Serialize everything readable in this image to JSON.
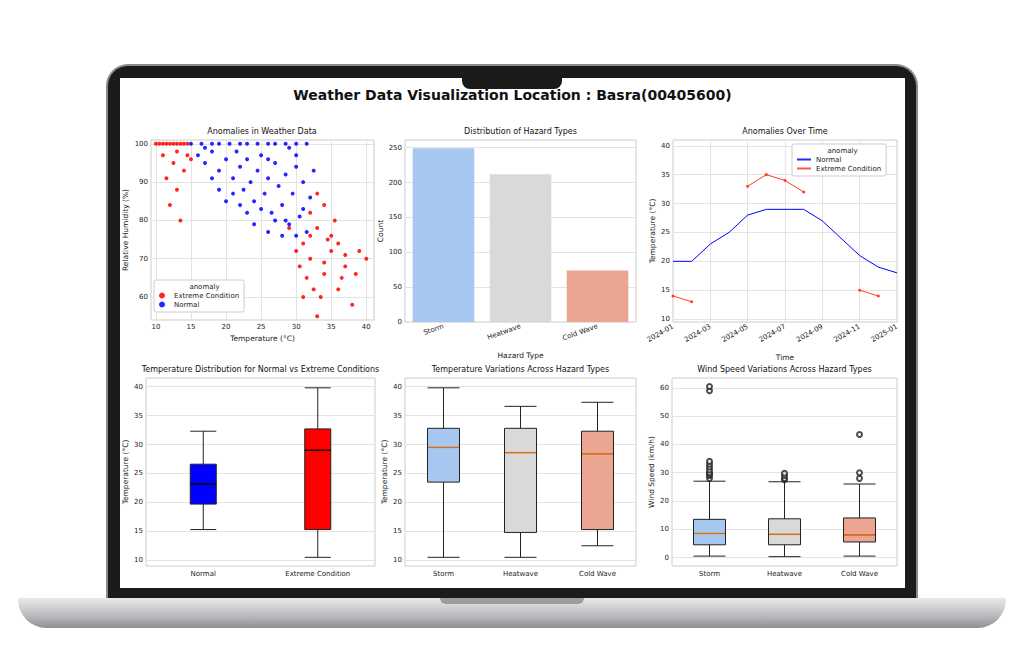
{
  "title": "Weather Data Visualization Location : Basra(00405600)",
  "chart_data": [
    {
      "type": "scatter",
      "title": "Anomalies in Weather Data",
      "x_label": "Temperature (°C)",
      "y_label": "Relative Humidity (%)",
      "xlim": [
        9.3,
        41.1
      ],
      "xticks": [
        10,
        15,
        20,
        25,
        30,
        35,
        40
      ],
      "ylim": [
        54,
        101
      ],
      "yticks": [
        60,
        70,
        80,
        90,
        100
      ],
      "grid": true,
      "legend": "lower left",
      "legend_title": "anomaly",
      "series": [
        {
          "name": "Extreme Condition",
          "color": "#ff0000",
          "marker": "circle",
          "x": [
            10,
            10.5,
            11,
            11.5,
            12,
            12.5,
            13,
            13.5,
            14,
            14.5,
            11.5,
            12.5,
            13,
            14,
            13.5,
            12,
            14.5,
            11,
            13,
            15,
            31,
            32,
            33,
            34,
            35,
            36,
            37,
            38,
            39,
            40,
            30,
            32.5,
            33.5,
            34.5,
            35.5,
            36.5,
            33,
            29,
            31.5,
            34,
            32,
            33,
            35,
            37,
            30.5,
            31,
            36,
            38.5,
            34,
            32
          ],
          "y": [
            100,
            100,
            100,
            100,
            100,
            100,
            100,
            100,
            100,
            100,
            91,
            95,
            88,
            93,
            80,
            84,
            97,
            97,
            98,
            96,
            74,
            70,
            78,
            66,
            72,
            62,
            68,
            58,
            72,
            70,
            72,
            62,
            60,
            75,
            80,
            65,
            55,
            78,
            65,
            84,
            82,
            87,
            76,
            71,
            68,
            60,
            74,
            66,
            69,
            76
          ]
        },
        {
          "name": "Normal",
          "color": "#0000ff",
          "marker": "circle",
          "x": [
            15,
            16.5,
            18,
            19,
            20.5,
            22,
            23,
            24.5,
            26,
            27,
            28.5,
            30,
            31.5,
            16,
            17,
            18,
            19,
            20,
            21,
            21.5,
            22,
            22.5,
            23,
            23.5,
            24,
            24.5,
            25,
            25.5,
            26,
            26.5,
            27,
            27.5,
            28,
            28.5,
            29,
            29.5,
            30,
            30.5,
            31,
            31.5,
            32,
            32.5,
            20,
            19,
            18,
            17,
            24,
            25,
            26,
            27,
            28,
            23,
            22,
            21,
            30,
            29,
            31,
            30,
            28.5,
            26
          ],
          "y": [
            100,
            100,
            100,
            100,
            100,
            100,
            100,
            100,
            100,
            100,
            100,
            100,
            100,
            97,
            95,
            98,
            93,
            96,
            91,
            98,
            94,
            88,
            96,
            90,
            85,
            93,
            97,
            87,
            91,
            82,
            95,
            89,
            84,
            92,
            79,
            87,
            94,
            81,
            90,
            77,
            86,
            93,
            85,
            88,
            91,
            99,
            79,
            83,
            77,
            80,
            76,
            82,
            84,
            87,
            76,
            99,
            83,
            97,
            80,
            96
          ]
        }
      ]
    },
    {
      "type": "bar",
      "title": "Distribution of Hazard Types",
      "x_label": "Hazard Type",
      "y_label": "Count",
      "categories": [
        "Storm",
        "Heatwave",
        "Cold Wave"
      ],
      "values": [
        249,
        212,
        74
      ],
      "colors": [
        "#a6c8f0",
        "#d9d9d9",
        "#eba591"
      ],
      "ylim": [
        0,
        261
      ],
      "yticks": [
        0,
        50,
        100,
        150,
        200,
        250
      ],
      "grid": true
    },
    {
      "type": "line",
      "title": "Anomalies Over Time",
      "x_label": "Time",
      "y_label": "Temperature (°C)",
      "x": [
        "2024-01",
        null,
        "2024-03",
        null,
        "2024-05",
        null,
        "2024-07",
        null,
        "2024-09",
        null,
        "2024-11",
        null,
        "2025-01"
      ],
      "ylim": [
        9.5,
        41
      ],
      "yticks": [
        10,
        15,
        20,
        25,
        30,
        35,
        40
      ],
      "grid": true,
      "legend": "upper right",
      "legend_title": "anomaly",
      "series": [
        {
          "name": "Normal",
          "color": "#0000ff",
          "marker": "none",
          "line_style": "solid",
          "values": [
            20,
            20,
            23,
            25,
            28,
            29,
            29,
            29,
            27,
            24,
            21,
            19,
            18
          ]
        },
        {
          "name": "Extreme Condition",
          "color": "#ff3c28",
          "marker": "circle",
          "line_style": "solid",
          "values": [
            14,
            13,
            null,
            null,
            33,
            35,
            34,
            32,
            null,
            null,
            15,
            14,
            null
          ]
        }
      ]
    },
    {
      "type": "boxplot",
      "title": "Temperature Distribution for Normal vs Extreme Conditions",
      "y_label": "Temperature (°C)",
      "categories": [
        "Normal",
        "Extreme Condition"
      ],
      "boxes": [
        {
          "min": 15.3,
          "q1": 19.7,
          "median": 23.2,
          "q3": 26.6,
          "max": 32.3
        },
        {
          "min": 10.5,
          "q1": 15.3,
          "median": 29,
          "q3": 32.7,
          "max": 39.8
        }
      ],
      "colors": [
        "#0000ff",
        "#ff0000"
      ],
      "ylim": [
        9,
        41.5
      ],
      "yticks": [
        10,
        15,
        20,
        25,
        30,
        35,
        40
      ],
      "grid": true
    },
    {
      "type": "boxplot",
      "title": "Temperature Variations Across Hazard Types",
      "y_label": "Temperature (°C)",
      "categories": [
        "Storm",
        "Heatwave",
        "Cold Wave"
      ],
      "boxes": [
        {
          "min": 10.5,
          "q1": 23.5,
          "median": 29.5,
          "q3": 32.8,
          "max": 39.8
        },
        {
          "min": 10.5,
          "q1": 14.8,
          "median": 28.6,
          "q3": 32.8,
          "max": 36.6
        },
        {
          "min": 12.5,
          "q1": 15.3,
          "median": 28.4,
          "q3": 32.3,
          "max": 37.3
        }
      ],
      "colors": [
        "#a6c8f0",
        "#d9d9d9",
        "#eba591"
      ],
      "ylim": [
        9,
        41.5
      ],
      "yticks": [
        10,
        15,
        20,
        25,
        30,
        35,
        40
      ],
      "grid": true
    },
    {
      "type": "boxplot",
      "title": "Wind Speed Variations Across Hazard Types",
      "y_label": "Wind Speed (km/h)",
      "categories": [
        "Storm",
        "Heatwave",
        "Cold Wave"
      ],
      "boxes": [
        {
          "min": 0.5,
          "q1": 4.5,
          "median": 8.5,
          "q3": 13.5,
          "max": 27,
          "outliers": [
            28,
            29,
            29.5,
            30,
            31,
            32,
            33,
            34,
            59,
            60.5
          ]
        },
        {
          "min": 0.3,
          "q1": 4.5,
          "median": 8.2,
          "q3": 13.7,
          "max": 26.8,
          "outliers": [
            27.5,
            28,
            29,
            29.8
          ]
        },
        {
          "min": 0.5,
          "q1": 5.5,
          "median": 8,
          "q3": 14,
          "max": 26,
          "outliers": [
            28,
            30,
            43.5
          ]
        }
      ],
      "colors": [
        "#a6c8f0",
        "#d9d9d9",
        "#eba591"
      ],
      "ylim": [
        -3,
        63.5
      ],
      "yticks": [
        0,
        10,
        20,
        30,
        40,
        50,
        60
      ],
      "grid": true
    }
  ]
}
